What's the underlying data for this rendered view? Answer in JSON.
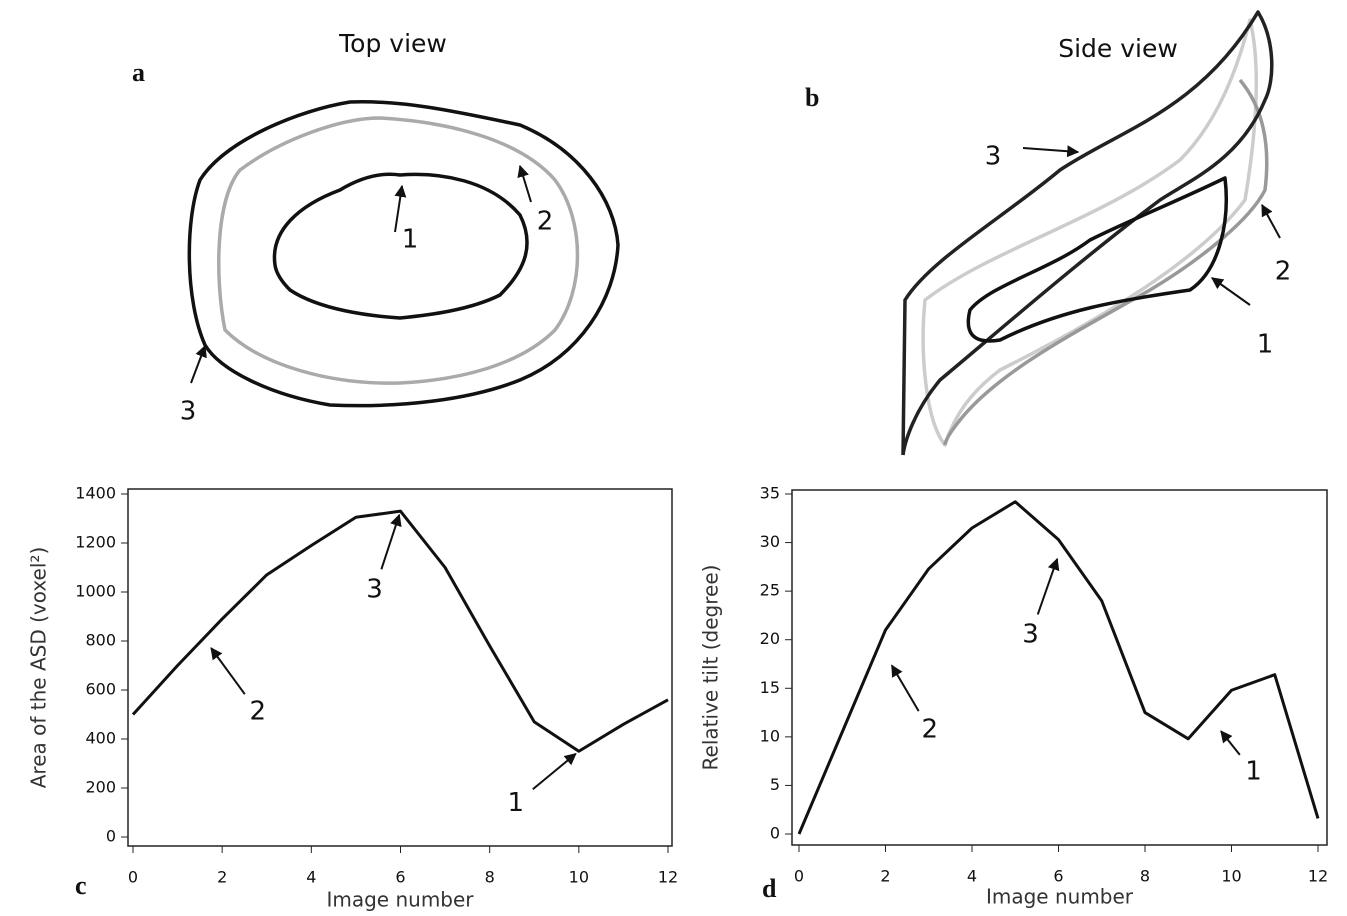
{
  "figure": {
    "panels": [
      {
        "label": "a",
        "title": "Top view",
        "annotations": [
          "1",
          "2",
          "3"
        ]
      },
      {
        "label": "b",
        "title": "Side view",
        "annotations": [
          "3",
          "2",
          "1"
        ]
      }
    ]
  },
  "chart_data": [
    {
      "type": "line",
      "label": "c",
      "xlabel": "Image number",
      "ylabel": "Area of the ASD (voxel²)",
      "x": [
        0,
        1,
        2,
        3,
        4,
        5,
        6,
        7,
        8,
        9,
        10,
        11,
        12
      ],
      "values": [
        500,
        700,
        890,
        1070,
        1190,
        1305,
        1330,
        1100,
        780,
        470,
        350,
        460,
        560
      ],
      "color": "#111111",
      "xlim": [
        0,
        12
      ],
      "ylim": [
        0,
        1400
      ],
      "xticks": [
        0,
        2,
        4,
        6,
        8,
        10,
        12
      ],
      "yticks": [
        0,
        200,
        400,
        600,
        800,
        1000,
        1200,
        1400
      ],
      "annotations": [
        {
          "text": "3",
          "x": 6,
          "y": 1330
        },
        {
          "text": "2",
          "x": 1.7,
          "y": 784
        },
        {
          "text": "1",
          "x": 10,
          "y": 350
        }
      ]
    },
    {
      "type": "line",
      "label": "d",
      "xlabel": "Image number",
      "ylabel": "Relative tilt (degree)",
      "x": [
        0,
        1,
        2,
        3,
        4,
        5,
        6,
        7,
        8,
        9,
        10,
        11,
        12
      ],
      "values": [
        0,
        10.5,
        21,
        27.3,
        31.5,
        34.2,
        30.3,
        24,
        12.5,
        9.8,
        14.8,
        16.4,
        1.6
      ],
      "color": "#111111",
      "xlim": [
        0,
        12
      ],
      "ylim": [
        0,
        35
      ],
      "xticks": [
        0,
        2,
        4,
        6,
        8,
        10,
        12
      ],
      "yticks": [
        0,
        5,
        10,
        15,
        20,
        25,
        30,
        35
      ],
      "annotations": [
        {
          "text": "3",
          "x": 6,
          "y": 28.7
        },
        {
          "text": "2",
          "x": 2.1,
          "y": 17.7
        },
        {
          "text": "1",
          "x": 9.7,
          "y": 10.9
        }
      ]
    }
  ]
}
